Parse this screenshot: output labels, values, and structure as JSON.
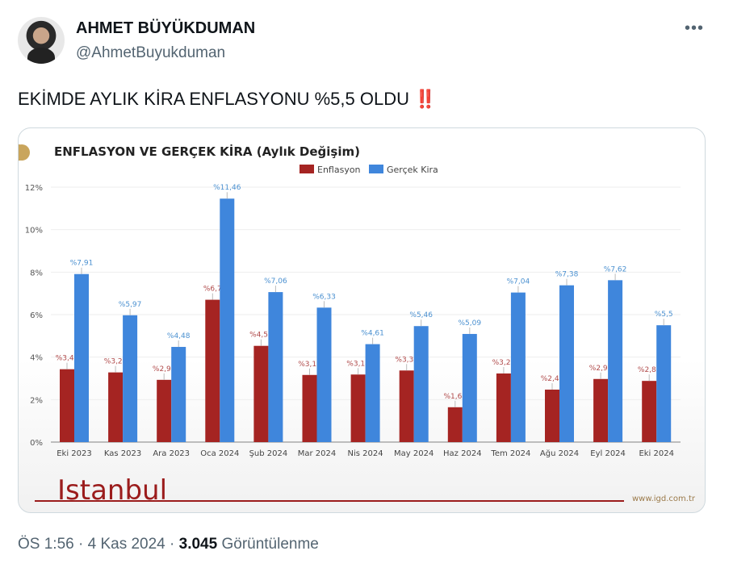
{
  "tweet": {
    "author_name": "AHMET BÜYÜKDUMAN",
    "handle": "@AhmetBuyukduman",
    "text": "EKİMDE AYLIK KİRA ENFLASYONU %5,5 OLDU",
    "emoji": "‼️",
    "time": "ÖS 1:56",
    "date": "4 Kas 2024",
    "views_count": "3.045",
    "views_label": "Görüntülenme",
    "more_icon": "more-horizontal-icon"
  },
  "branding": {
    "logo_text": "Istanbul",
    "website": "www.igd.com.tr"
  },
  "chart_data": {
    "type": "bar",
    "title": "ENFLASYON VE GERÇEK KİRA (Aylık Değişim)",
    "categories": [
      "Eki 2023",
      "Kas 2023",
      "Ara 2023",
      "Oca 2024",
      "Şub 2024",
      "Mar 2024",
      "Nis 2024",
      "May 2024",
      "Haz 2024",
      "Tem 2024",
      "Ağu 2024",
      "Eyl 2024",
      "Eki 2024"
    ],
    "series": [
      {
        "name": "Enflasyon",
        "color": "#a52422",
        "values": [
          3.43,
          3.28,
          2.93,
          6.7,
          4.53,
          3.16,
          3.18,
          3.37,
          1.64,
          3.23,
          2.47,
          2.97,
          2.88
        ],
        "labels": [
          "%3,43",
          "%3,28",
          "%2,93",
          "%6,7",
          "%4,53",
          "%3,16",
          "%3,18",
          "%3,37",
          "%1,64",
          "%3,23",
          "%2,47",
          "%2,97",
          "%2,88"
        ]
      },
      {
        "name": "Gerçek Kira",
        "color": "#3f86dc",
        "values": [
          7.91,
          5.97,
          4.48,
          11.46,
          7.06,
          6.33,
          4.61,
          5.46,
          5.09,
          7.04,
          7.38,
          7.62,
          5.5
        ],
        "labels": [
          "%7,91",
          "%5,97",
          "%4,48",
          "%11,46",
          "%7,06",
          "%6,33",
          "%4,61",
          "%5,46",
          "%5,09",
          "%7,04",
          "%7,38",
          "%7,62",
          "%5,5"
        ]
      }
    ],
    "yticks": [
      "0%",
      "2%",
      "4%",
      "6%",
      "8%",
      "10%",
      "12%"
    ],
    "ylim": [
      0,
      12
    ],
    "legend": "top-center",
    "grid": true
  }
}
